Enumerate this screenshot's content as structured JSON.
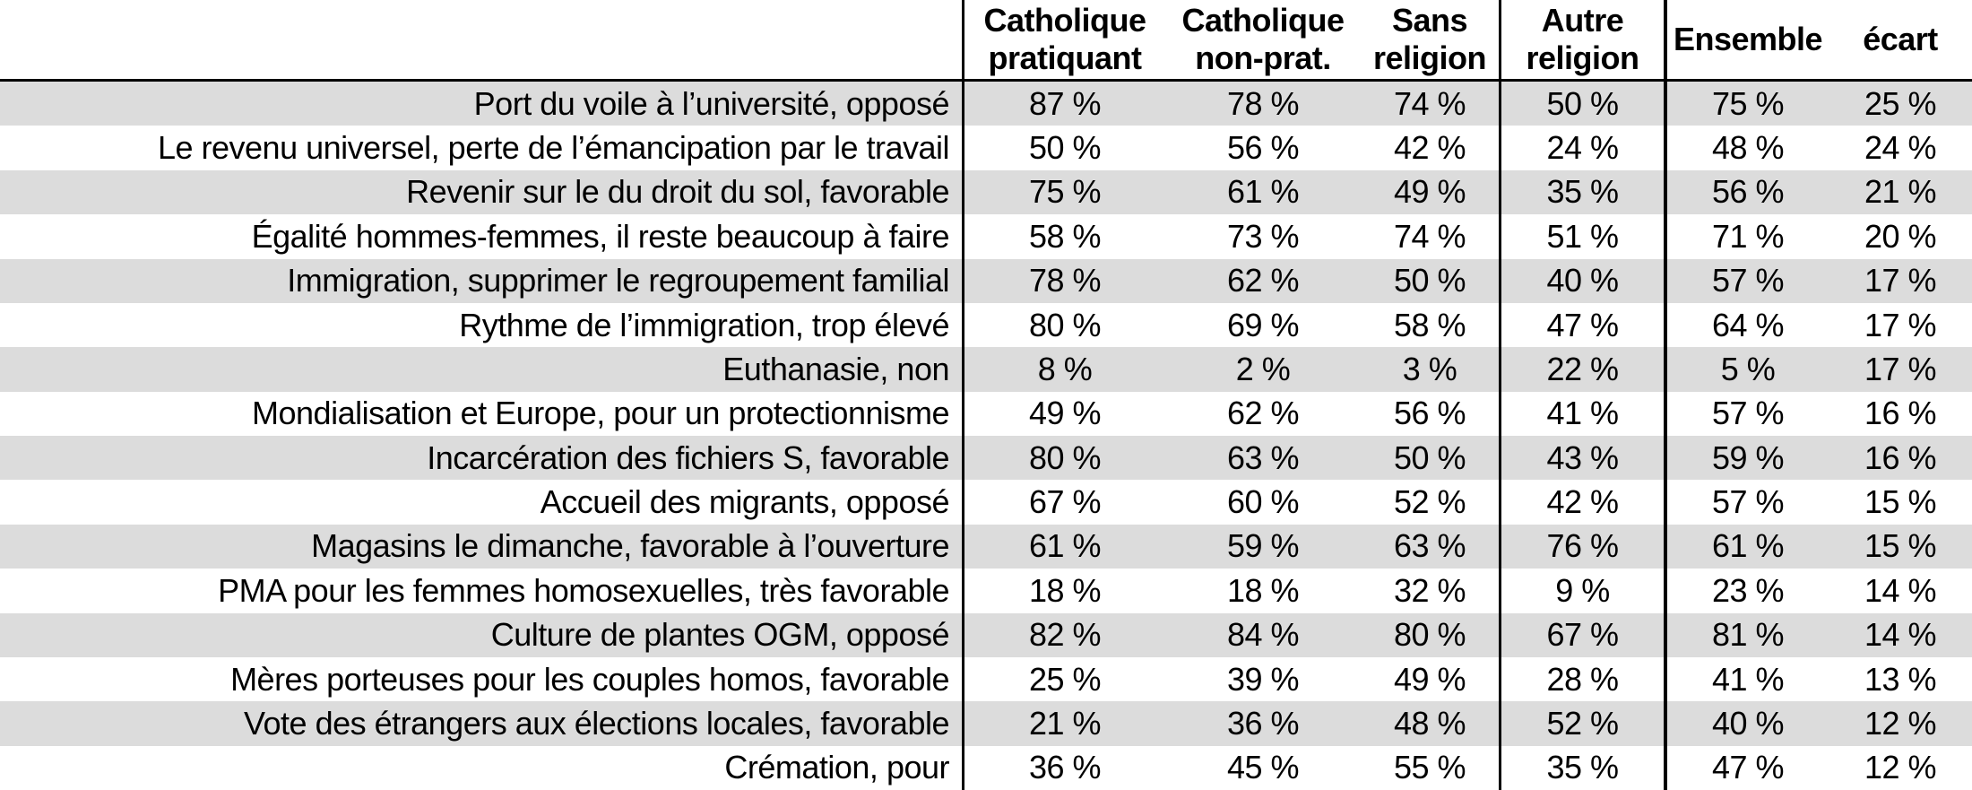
{
  "table": {
    "unit": "%",
    "columns": [
      {
        "id": "catholique-pratiquant",
        "line1": "Catholique",
        "line2": "pratiquant"
      },
      {
        "id": "catholique-non-pratiquant",
        "line1": "Catholique",
        "line2": "non-prat."
      },
      {
        "id": "sans-religion",
        "line1": "Sans",
        "line2": "religion"
      },
      {
        "id": "autre-religion",
        "line1": "Autre",
        "line2": "religion"
      },
      {
        "id": "ensemble",
        "line1": "Ensemble",
        "line2": ""
      },
      {
        "id": "ecart",
        "line1": "écart",
        "line2": ""
      }
    ],
    "rows": [
      {
        "label": "Port du voile à l’université, opposé",
        "values": [
          "87 %",
          "78 %",
          "74 %",
          "50 %",
          "75 %",
          "25 %"
        ]
      },
      {
        "label": "Le revenu universel, perte de l’émancipation par le travail",
        "values": [
          "50 %",
          "56 %",
          "42 %",
          "24 %",
          "48 %",
          "24 %"
        ]
      },
      {
        "label": "Revenir sur le du droit du sol, favorable",
        "values": [
          "75 %",
          "61 %",
          "49 %",
          "35 %",
          "56 %",
          "21 %"
        ]
      },
      {
        "label": "Égalité hommes-femmes, il reste beaucoup à faire",
        "values": [
          "58 %",
          "73 %",
          "74 %",
          "51 %",
          "71 %",
          "20 %"
        ]
      },
      {
        "label": "Immigration, supprimer le regroupement familial",
        "values": [
          "78 %",
          "62 %",
          "50 %",
          "40 %",
          "57 %",
          "17 %"
        ]
      },
      {
        "label": "Rythme de l’immigration, trop élevé",
        "values": [
          "80 %",
          "69 %",
          "58 %",
          "47 %",
          "64 %",
          "17 %"
        ]
      },
      {
        "label": "Euthanasie, non",
        "values": [
          "8 %",
          "2 %",
          "3 %",
          "22 %",
          "5 %",
          "17 %"
        ]
      },
      {
        "label": "Mondialisation et Europe, pour un protectionnisme",
        "values": [
          "49 %",
          "62 %",
          "56 %",
          "41 %",
          "57 %",
          "16 %"
        ]
      },
      {
        "label": "Incarcération des fichiers S, favorable",
        "values": [
          "80 %",
          "63 %",
          "50 %",
          "43 %",
          "59 %",
          "16 %"
        ]
      },
      {
        "label": "Accueil des migrants, opposé",
        "values": [
          "67 %",
          "60 %",
          "52 %",
          "42 %",
          "57 %",
          "15 %"
        ]
      },
      {
        "label": "Magasins le dimanche, favorable à l’ouverture",
        "values": [
          "61 %",
          "59 %",
          "63 %",
          "76 %",
          "61 %",
          "15 %"
        ]
      },
      {
        "label": "PMA pour les femmes homosexuelles, très favorable",
        "values": [
          "18 %",
          "18 %",
          "32 %",
          "9 %",
          "23 %",
          "14 %"
        ]
      },
      {
        "label": "Culture de plantes OGM, opposé",
        "values": [
          "82 %",
          "84 %",
          "80 %",
          "67 %",
          "81 %",
          "14 %"
        ]
      },
      {
        "label": "Mères porteuses pour les couples homos, favorable",
        "values": [
          "25 %",
          "39 %",
          "49 %",
          "28 %",
          "41 %",
          "13 %"
        ]
      },
      {
        "label": "Vote des étrangers aux élections locales, favorable",
        "values": [
          "21 %",
          "36 %",
          "48 %",
          "52 %",
          "40 %",
          "12 %"
        ]
      },
      {
        "label": "Crémation, pour",
        "values": [
          "36 %",
          "45 %",
          "55 %",
          "35 %",
          "47 %",
          "12 %"
        ]
      }
    ]
  },
  "colors": {
    "stripe": "#dcdcdc",
    "border": "#000000",
    "background": "#ffffff",
    "text": "#000000"
  },
  "chart_data": {
    "type": "table",
    "title": "",
    "unit": "%",
    "categories": [
      "Port du voile à l’université, opposé",
      "Le revenu universel, perte de l’émancipation par le travail",
      "Revenir sur le du droit du sol, favorable",
      "Égalité hommes-femmes, il reste beaucoup à faire",
      "Immigration, supprimer le regroupement familial",
      "Rythme de l’immigration, trop élevé",
      "Euthanasie, non",
      "Mondialisation et Europe, pour un protectionnisme",
      "Incarcération des fichiers S, favorable",
      "Accueil des migrants, opposé",
      "Magasins le dimanche, favorable à l’ouverture",
      "PMA pour les femmes homosexuelles, très favorable",
      "Culture de plantes OGM, opposé",
      "Mères porteuses pour les couples homos, favorable",
      "Vote des étrangers aux élections locales, favorable",
      "Crémation, pour"
    ],
    "series": [
      {
        "name": "Catholique pratiquant",
        "values": [
          87,
          50,
          75,
          58,
          78,
          80,
          8,
          49,
          80,
          67,
          61,
          18,
          82,
          25,
          21,
          36
        ]
      },
      {
        "name": "Catholique non-prat.",
        "values": [
          78,
          56,
          61,
          73,
          62,
          69,
          2,
          62,
          63,
          60,
          59,
          18,
          84,
          39,
          36,
          45
        ]
      },
      {
        "name": "Sans religion",
        "values": [
          74,
          42,
          49,
          74,
          50,
          58,
          3,
          56,
          50,
          52,
          63,
          32,
          80,
          49,
          48,
          55
        ]
      },
      {
        "name": "Autre religion",
        "values": [
          50,
          24,
          35,
          51,
          40,
          47,
          22,
          41,
          43,
          42,
          76,
          9,
          67,
          28,
          52,
          35
        ]
      },
      {
        "name": "Ensemble",
        "values": [
          75,
          48,
          56,
          71,
          57,
          64,
          5,
          57,
          59,
          57,
          61,
          23,
          81,
          41,
          40,
          47
        ]
      },
      {
        "name": "écart",
        "values": [
          25,
          24,
          21,
          20,
          17,
          17,
          17,
          16,
          16,
          15,
          15,
          14,
          14,
          13,
          12,
          12
        ]
      }
    ],
    "layout": {
      "row_striping": true,
      "grid": false,
      "legend_position": "none"
    }
  }
}
